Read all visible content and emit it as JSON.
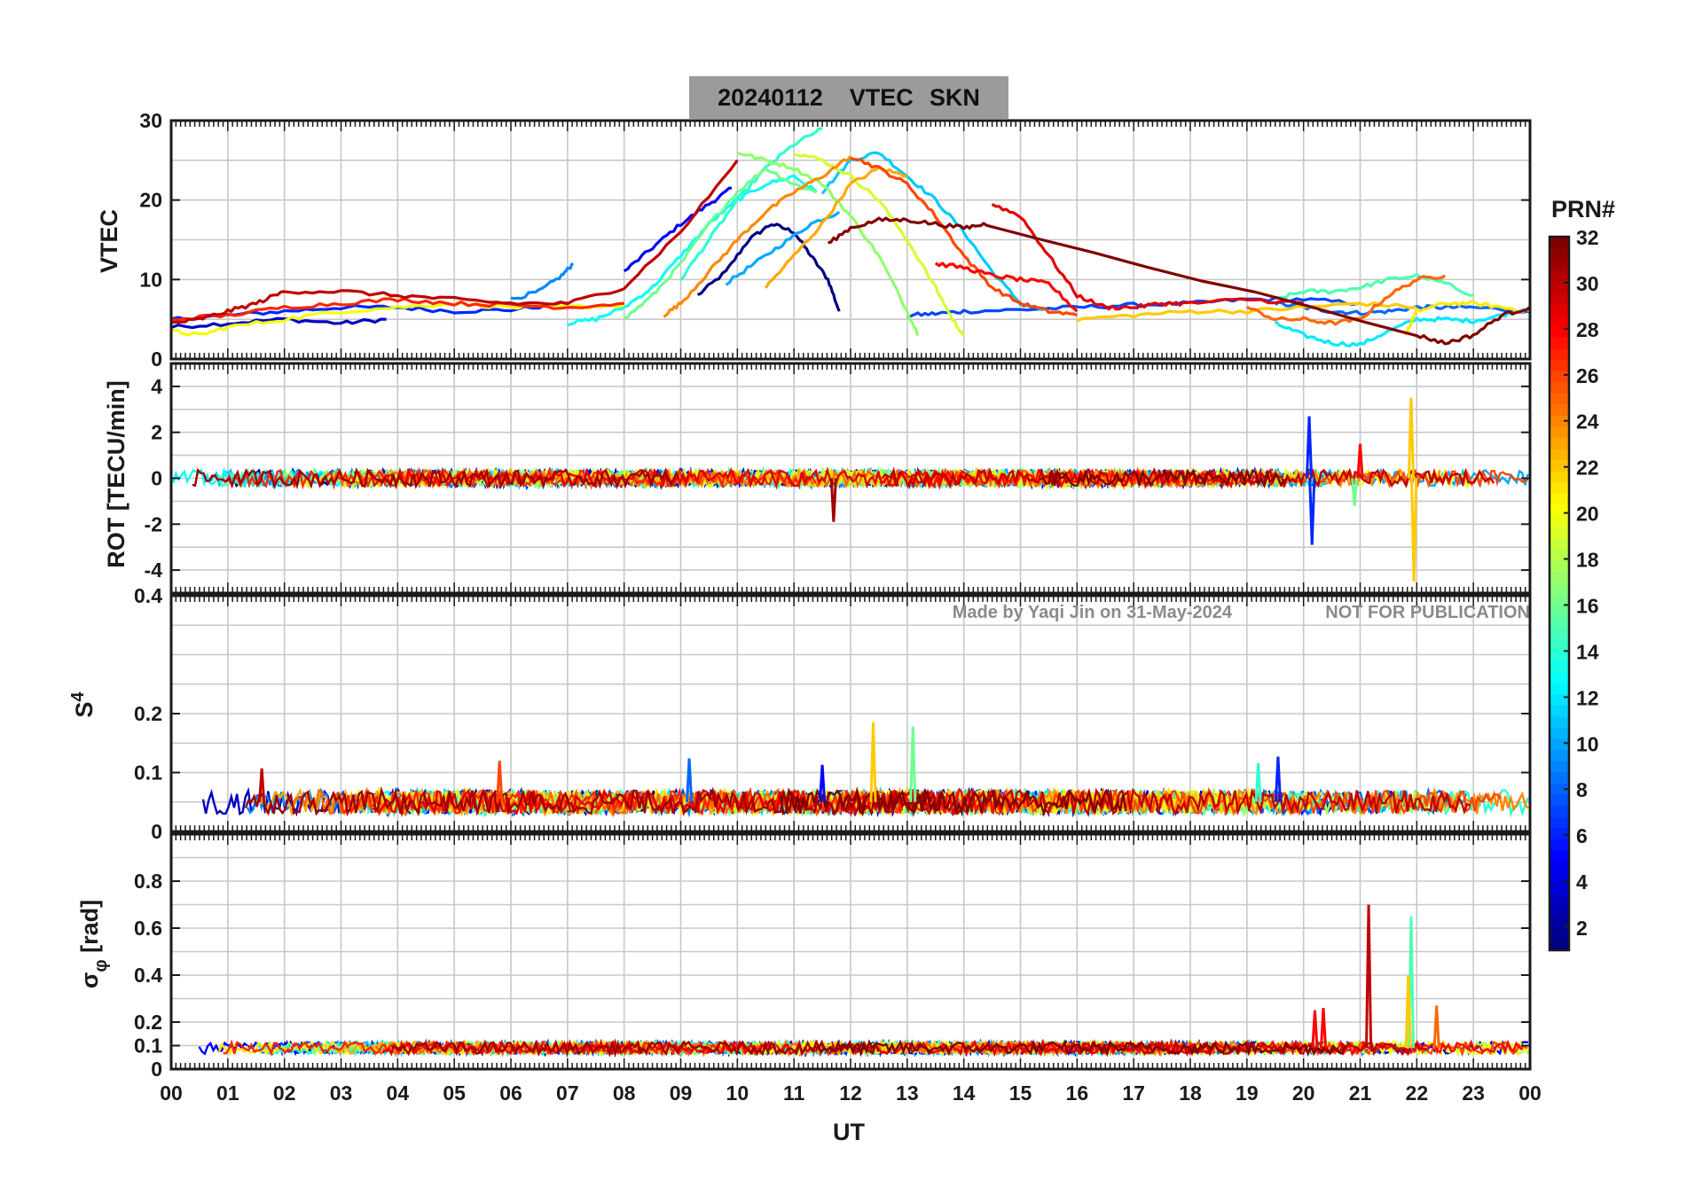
{
  "title": {
    "date": "20240112",
    "kind": "VTEC",
    "station": "SKN"
  },
  "watermark": {
    "author": "Made by Yaqi Jin on 31-May-2024",
    "notice": "NOT FOR PUBLICATION"
  },
  "colors": {
    "title_box": "#9b9b9b",
    "grid": "#c8c8c8",
    "axis": "#1a1a1a",
    "watermark": "#8a8a8a"
  },
  "colorbar": {
    "label": "PRN#",
    "range": [
      1,
      32
    ],
    "ticks": [
      2,
      4,
      6,
      8,
      10,
      12,
      14,
      16,
      18,
      20,
      22,
      24,
      26,
      28,
      30,
      32
    ],
    "colormap": "jet"
  },
  "chart_data": [
    {
      "type": "line",
      "panel": "vtec",
      "ylabel": "VTEC",
      "xlabel": "",
      "xlim": [
        0,
        24
      ],
      "xtick_labels": [
        "00",
        "01",
        "02",
        "03",
        "04",
        "05",
        "06",
        "07",
        "08",
        "09",
        "10",
        "11",
        "12",
        "13",
        "14",
        "15",
        "16",
        "17",
        "18",
        "19",
        "20",
        "21",
        "22",
        "23",
        "00"
      ],
      "ylim": [
        0,
        30
      ],
      "yticks": [
        0,
        10,
        20,
        30
      ],
      "series": [
        {
          "prn": 1,
          "x": [
            9.3,
            9.8,
            10.2,
            10.6,
            11.0,
            11.3,
            11.6,
            11.8
          ],
          "y": [
            8,
            11,
            15,
            17,
            16,
            13,
            10,
            6
          ]
        },
        {
          "prn": 3,
          "x": [
            0.0,
            1.0,
            2.0,
            3.0,
            3.8
          ],
          "y": [
            4,
            4.5,
            5,
            4.5,
            5
          ]
        },
        {
          "prn": 5,
          "x": [
            8.0,
            8.5,
            9.0,
            9.5,
            9.9
          ],
          "y": [
            11,
            14,
            17,
            19.5,
            21.5
          ]
        },
        {
          "prn": 6,
          "x": [
            0.0,
            1.0,
            2.0,
            3.0,
            4.0,
            5.0,
            6.0,
            7.0
          ],
          "y": [
            5,
            5.5,
            6,
            6.5,
            6.5,
            6,
            6.2,
            7
          ]
        },
        {
          "prn": 7,
          "x": [
            13.0,
            13.5,
            14.0,
            15.0,
            16.0,
            17.0,
            18.0,
            19.0,
            20.0,
            21.0
          ],
          "y": [
            5.5,
            5.7,
            6,
            6.2,
            6.5,
            6.8,
            7,
            7.5,
            7.5,
            7
          ]
        },
        {
          "prn": 8,
          "x": [
            19.5,
            20.0,
            20.5,
            21.0,
            21.5,
            22.0,
            22.5,
            23.0,
            24.0
          ],
          "y": [
            7,
            6.5,
            6,
            5.8,
            6,
            6.5,
            6.5,
            6.5,
            6
          ]
        },
        {
          "prn": 9,
          "x": [
            6.0,
            6.5,
            6.9,
            7.1
          ],
          "y": [
            7.5,
            8.5,
            10.5,
            12
          ]
        },
        {
          "prn": 10,
          "x": [
            9.8,
            10.3,
            10.8,
            11.3,
            11.8
          ],
          "y": [
            9.5,
            12,
            14.5,
            17,
            18.5
          ]
        },
        {
          "prn": 11,
          "x": [
            11.5,
            12.0,
            12.5,
            13.0,
            13.5,
            14.0,
            14.5,
            15.0,
            15.5
          ],
          "y": [
            21,
            25,
            26,
            23,
            20,
            16,
            11,
            7,
            6
          ]
        },
        {
          "prn": 12,
          "x": [
            19.5,
            20.0,
            20.5,
            21.0,
            21.5,
            22.0,
            22.5,
            23.0,
            23.5,
            24.0
          ],
          "y": [
            4.5,
            3,
            2,
            1.8,
            3.5,
            5,
            5,
            4.8,
            5.5,
            6.5
          ]
        },
        {
          "prn": 13,
          "x": [
            7.0,
            7.5,
            8.0,
            8.5,
            9.0,
            9.5,
            10.0,
            10.5,
            11.0,
            11.4
          ],
          "y": [
            4.5,
            5,
            6.5,
            9,
            13,
            17,
            20,
            22,
            23,
            21
          ]
        },
        {
          "prn": 14,
          "x": [
            9.0,
            9.5,
            10.0,
            10.5,
            11.0,
            11.5
          ],
          "y": [
            10,
            15,
            20,
            24,
            27,
            29
          ]
        },
        {
          "prn": 15,
          "x": [
            19.5,
            20.0,
            20.5,
            21.0,
            21.5,
            22.0,
            22.5,
            23.0
          ],
          "y": [
            7.5,
            8.5,
            8.5,
            9,
            10,
            10.5,
            9.5,
            8
          ]
        },
        {
          "prn": 16,
          "x": [
            8.0,
            8.5,
            9.0,
            9.5,
            10.0,
            10.5,
            11.0,
            11.4
          ],
          "y": [
            5,
            8,
            12,
            17,
            21,
            24,
            22,
            21
          ]
        },
        {
          "prn": 17,
          "x": [
            10.0,
            10.5,
            11.0,
            11.5,
            12.0,
            12.5,
            13.0,
            13.2
          ],
          "y": [
            26,
            25,
            24,
            22,
            18,
            13,
            6,
            3
          ]
        },
        {
          "prn": 19,
          "x": [
            11.0,
            11.5,
            12.0,
            12.5,
            13.0,
            13.5,
            13.8,
            14.0
          ],
          "y": [
            26,
            25,
            23,
            20,
            15,
            9,
            5,
            3
          ]
        },
        {
          "prn": 20,
          "x": [
            0.0,
            0.5,
            1.0,
            2.0,
            3.0,
            4.0,
            5.0,
            6.0,
            7.0,
            8.0
          ],
          "y": [
            3.5,
            3,
            4,
            5,
            6,
            6.5,
            7,
            6.5,
            6.5,
            6.8
          ]
        },
        {
          "prn": 21,
          "x": [
            21.8,
            22.0,
            22.5,
            23.0,
            23.5,
            24.0
          ],
          "y": [
            3,
            6,
            7,
            7,
            6.5,
            6
          ]
        },
        {
          "prn": 22,
          "x": [
            16.0,
            17.0,
            18.0,
            19.0,
            20.0,
            21.0,
            22.0
          ],
          "y": [
            5,
            5.5,
            6,
            6,
            6.5,
            7,
            6.5
          ]
        },
        {
          "prn": 23,
          "x": [
            10.5,
            11.0,
            11.5,
            12.0,
            12.5,
            13.0
          ],
          "y": [
            9,
            13,
            17,
            22,
            24,
            23
          ]
        },
        {
          "prn": 24,
          "x": [
            8.7,
            9.0,
            9.5,
            10.0,
            10.5,
            11.0,
            11.5,
            12.0
          ],
          "y": [
            5.5,
            7,
            11,
            15,
            18.5,
            21,
            23,
            25.5
          ]
        },
        {
          "prn": 25,
          "x": [
            19.0,
            19.5,
            20.0,
            20.5,
            21.0,
            21.5,
            22.0,
            22.5
          ],
          "y": [
            6.5,
            5,
            5,
            4.5,
            5,
            8,
            10,
            10.5
          ]
        },
        {
          "prn": 26,
          "x": [
            12.0,
            12.5,
            13.0,
            13.5,
            14.0,
            14.5,
            15.0,
            15.5,
            16.0
          ],
          "y": [
            25.5,
            24,
            22,
            18,
            13,
            9,
            7,
            6,
            5.5
          ]
        },
        {
          "prn": 27,
          "x": [
            0.0,
            1.0,
            2.0,
            3.0,
            4.0,
            5.0,
            6.0,
            7.0,
            8.0
          ],
          "y": [
            5,
            5.5,
            6.5,
            7,
            7.5,
            7,
            6.8,
            6.5,
            7
          ]
        },
        {
          "prn": 28,
          "x": [
            13.5,
            14.0,
            14.5,
            15.0,
            15.5,
            16.0
          ],
          "y": [
            12,
            11.5,
            10.5,
            10,
            9.5,
            6
          ]
        },
        {
          "prn": 29,
          "x": [
            14.5,
            15.0,
            15.5,
            16.0,
            16.5,
            17.0,
            17.5,
            18.0,
            19.0,
            20.0
          ],
          "y": [
            19.5,
            18,
            13,
            8,
            6.5,
            6.5,
            7,
            7,
            7.5,
            7
          ]
        },
        {
          "prn": 30,
          "x": [
            0.0,
            0.5,
            1.0,
            1.5,
            2.0,
            3.0,
            4.0,
            5.0,
            6.0,
            7.0,
            8.0,
            9.0,
            10.0
          ],
          "y": [
            4.5,
            5,
            6,
            7,
            8.5,
            8.5,
            8,
            7.5,
            7,
            7,
            9,
            16,
            25
          ]
        },
        {
          "prn": 32,
          "x": [
            11.6,
            12.0,
            12.5,
            13.0,
            13.5,
            14.0,
            14.4,
            22.0,
            22.5,
            23.0,
            23.5,
            24.0
          ],
          "y": [
            14.5,
            16.5,
            17.5,
            17.5,
            17,
            16.5,
            17,
            3,
            2,
            3,
            5.5,
            6.5
          ]
        }
      ]
    },
    {
      "type": "line",
      "panel": "rot",
      "ylabel": "ROT [TECU/min]",
      "ylim": [
        -5,
        5
      ],
      "yticks": [
        -4,
        -2,
        0,
        2,
        4
      ],
      "baseline": 0,
      "noise_amplitude": 0.35,
      "spikes": [
        {
          "x": 20.1,
          "y": 2.7,
          "prn": 6
        },
        {
          "x": 20.15,
          "y": -2.9,
          "prn": 6
        },
        {
          "x": 21.9,
          "y": 3.5,
          "prn": 22
        },
        {
          "x": 21.95,
          "y": -4.5,
          "prn": 22
        },
        {
          "x": 11.7,
          "y": -1.9,
          "prn": 31
        },
        {
          "x": 21.0,
          "y": 1.5,
          "prn": 28
        },
        {
          "x": 20.9,
          "y": -1.2,
          "prn": 16
        }
      ]
    },
    {
      "type": "line",
      "panel": "s4",
      "ylabel": "S4",
      "ylim": [
        0,
        0.4
      ],
      "yticks": [
        0,
        0.1,
        0.2
      ],
      "top_tick_label": "0.4",
      "baseline": 0.05,
      "noise_amplitude": 0.02,
      "spikes": [
        {
          "x": 12.4,
          "y": 0.185,
          "prn": 22
        },
        {
          "x": 13.1,
          "y": 0.178,
          "prn": 16
        },
        {
          "x": 11.5,
          "y": 0.113,
          "prn": 5
        },
        {
          "x": 9.15,
          "y": 0.124,
          "prn": 8
        },
        {
          "x": 5.8,
          "y": 0.12,
          "prn": 26
        },
        {
          "x": 19.55,
          "y": 0.127,
          "prn": 6
        },
        {
          "x": 19.2,
          "y": 0.116,
          "prn": 14
        },
        {
          "x": 1.6,
          "y": 0.107,
          "prn": 30
        }
      ]
    },
    {
      "type": "line",
      "panel": "sigma_phi",
      "ylabel": "σφ [rad]",
      "ylim": [
        0,
        1.0
      ],
      "yticks": [
        0,
        0.1,
        0.2,
        0.4,
        0.6,
        0.8
      ],
      "baseline": 0.09,
      "noise_amplitude": 0.025,
      "spikes": [
        {
          "x": 21.15,
          "y": 0.7,
          "prn": 30
        },
        {
          "x": 21.9,
          "y": 0.65,
          "prn": 15
        },
        {
          "x": 21.85,
          "y": 0.4,
          "prn": 22
        },
        {
          "x": 20.2,
          "y": 0.25,
          "prn": 28
        },
        {
          "x": 20.35,
          "y": 0.26,
          "prn": 28
        },
        {
          "x": 22.35,
          "y": 0.27,
          "prn": 25
        }
      ]
    }
  ],
  "xaxis": {
    "label": "UT"
  }
}
